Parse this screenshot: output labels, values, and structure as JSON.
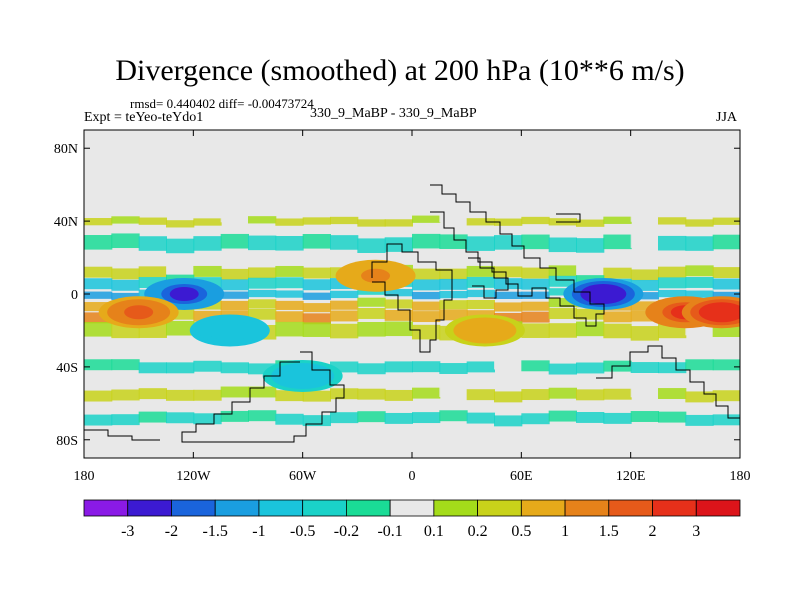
{
  "chart_data": {
    "type": "heatmap",
    "title": "Divergence (smoothed) at 200 hPa (10**6 m/s)",
    "stats_label": "rmsd= 0.440402 diff= -0.00473724",
    "experiment_label": "Expt = teYeo-teYdo1",
    "case_label": "330_9_MaBP - 330_9_MaBP",
    "season_label": "JJA",
    "x_axis": {
      "range": [
        -180,
        180
      ],
      "ticks": [
        -180,
        -120,
        -60,
        0,
        60,
        120,
        180
      ],
      "tick_labels": [
        "180",
        "120W",
        "60W",
        "0",
        "60E",
        "120E",
        "180"
      ]
    },
    "y_axis": {
      "range": [
        -90,
        90
      ],
      "ticks": [
        80,
        40,
        0,
        -40,
        -80
      ],
      "tick_labels": [
        "80N",
        "40N",
        "0",
        "40S",
        "80S"
      ]
    },
    "colorbar": {
      "levels": [
        "-3",
        "-2",
        "-1.5",
        "-1",
        "-0.5",
        "-0.2",
        "-0.1",
        "0.1",
        "0.2",
        "0.5",
        "1",
        "1.5",
        "2",
        "3"
      ],
      "colors": [
        "#8a1ae6",
        "#3c1ad2",
        "#1a64dc",
        "#1a9ee0",
        "#1ac4dc",
        "#1ad2c8",
        "#1adc96",
        "#e8e8e8",
        "#a4dc1a",
        "#c8d21a",
        "#e6aa1a",
        "#e6821a",
        "#e65a1a",
        "#e6301a",
        "#dc141a"
      ]
    },
    "features": [
      {
        "lon": -125,
        "lat": 0,
        "value": -2.2
      },
      {
        "lon": 105,
        "lat": 0,
        "value": -2.4
      },
      {
        "lon": -150,
        "lat": -10,
        "value": 1.6
      },
      {
        "lon": 150,
        "lat": -10,
        "value": 2.2
      },
      {
        "lon": 170,
        "lat": -10,
        "value": 2.4
      },
      {
        "lon": -20,
        "lat": 10,
        "value": 1.0
      },
      {
        "lon": -100,
        "lat": -20,
        "value": -1.0
      },
      {
        "lon": 40,
        "lat": -20,
        "value": 0.9
      },
      {
        "lon": -60,
        "lat": -45,
        "value": -0.9
      }
    ]
  }
}
